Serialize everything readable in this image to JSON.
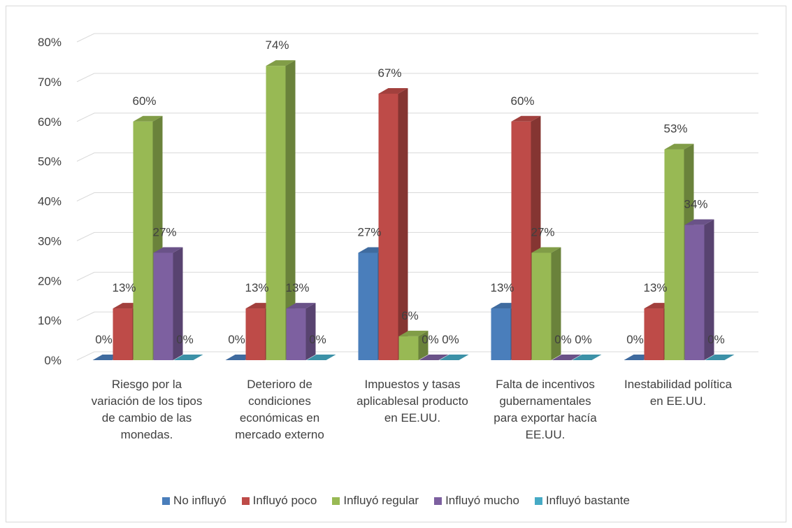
{
  "chart_data": {
    "type": "bar3d",
    "categories": [
      "Riesgo por la variación de los tipos de cambio de las monedas.",
      "Deterioro de condiciones económicas en mercado externo",
      "Impuestos y tasas aplicablesal producto en EE.UU.",
      "Falta de incentivos gubernamentales para exportar hacía EE.UU.",
      "Inestabilidad política en EE.UU."
    ],
    "series": [
      {
        "name": "No influyó",
        "color": "#4a7ebb",
        "values": [
          0,
          0,
          27,
          13,
          0
        ],
        "value_labels": [
          "0%",
          "0%",
          "27%",
          "13%",
          "0%"
        ]
      },
      {
        "name": "Influyó poco",
        "color": "#be4b48",
        "values": [
          13,
          13,
          67,
          60,
          13
        ],
        "value_labels": [
          "13%",
          "13%",
          "67%",
          "60%",
          "13%"
        ]
      },
      {
        "name": "Influyó regular",
        "color": "#98b954",
        "values": [
          60,
          74,
          6,
          27,
          53
        ],
        "value_labels": [
          "60%",
          "74%",
          "6%",
          "27%",
          "53%"
        ]
      },
      {
        "name": "Influyó mucho",
        "color": "#7d60a0",
        "values": [
          27,
          13,
          0,
          0,
          34
        ],
        "value_labels": [
          "27%",
          "13%",
          "0%",
          "0%",
          "34%"
        ]
      },
      {
        "name": "Influyó bastante",
        "color": "#46aac5",
        "values": [
          0,
          0,
          0,
          0,
          0
        ],
        "value_labels": [
          "0%",
          "0%",
          "0%",
          "0%",
          "0%"
        ]
      }
    ],
    "ylim": [
      0,
      80
    ],
    "yticks": [
      {
        "value": 0,
        "label": "0%"
      },
      {
        "value": 10,
        "label": "10%"
      },
      {
        "value": 20,
        "label": "20%"
      },
      {
        "value": 30,
        "label": "30%"
      },
      {
        "value": 40,
        "label": "40%"
      },
      {
        "value": 50,
        "label": "50%"
      },
      {
        "value": 60,
        "label": "60%"
      },
      {
        "value": 70,
        "label": "70%"
      },
      {
        "value": 80,
        "label": "80%"
      }
    ],
    "grid": true,
    "legend": "bottom"
  }
}
